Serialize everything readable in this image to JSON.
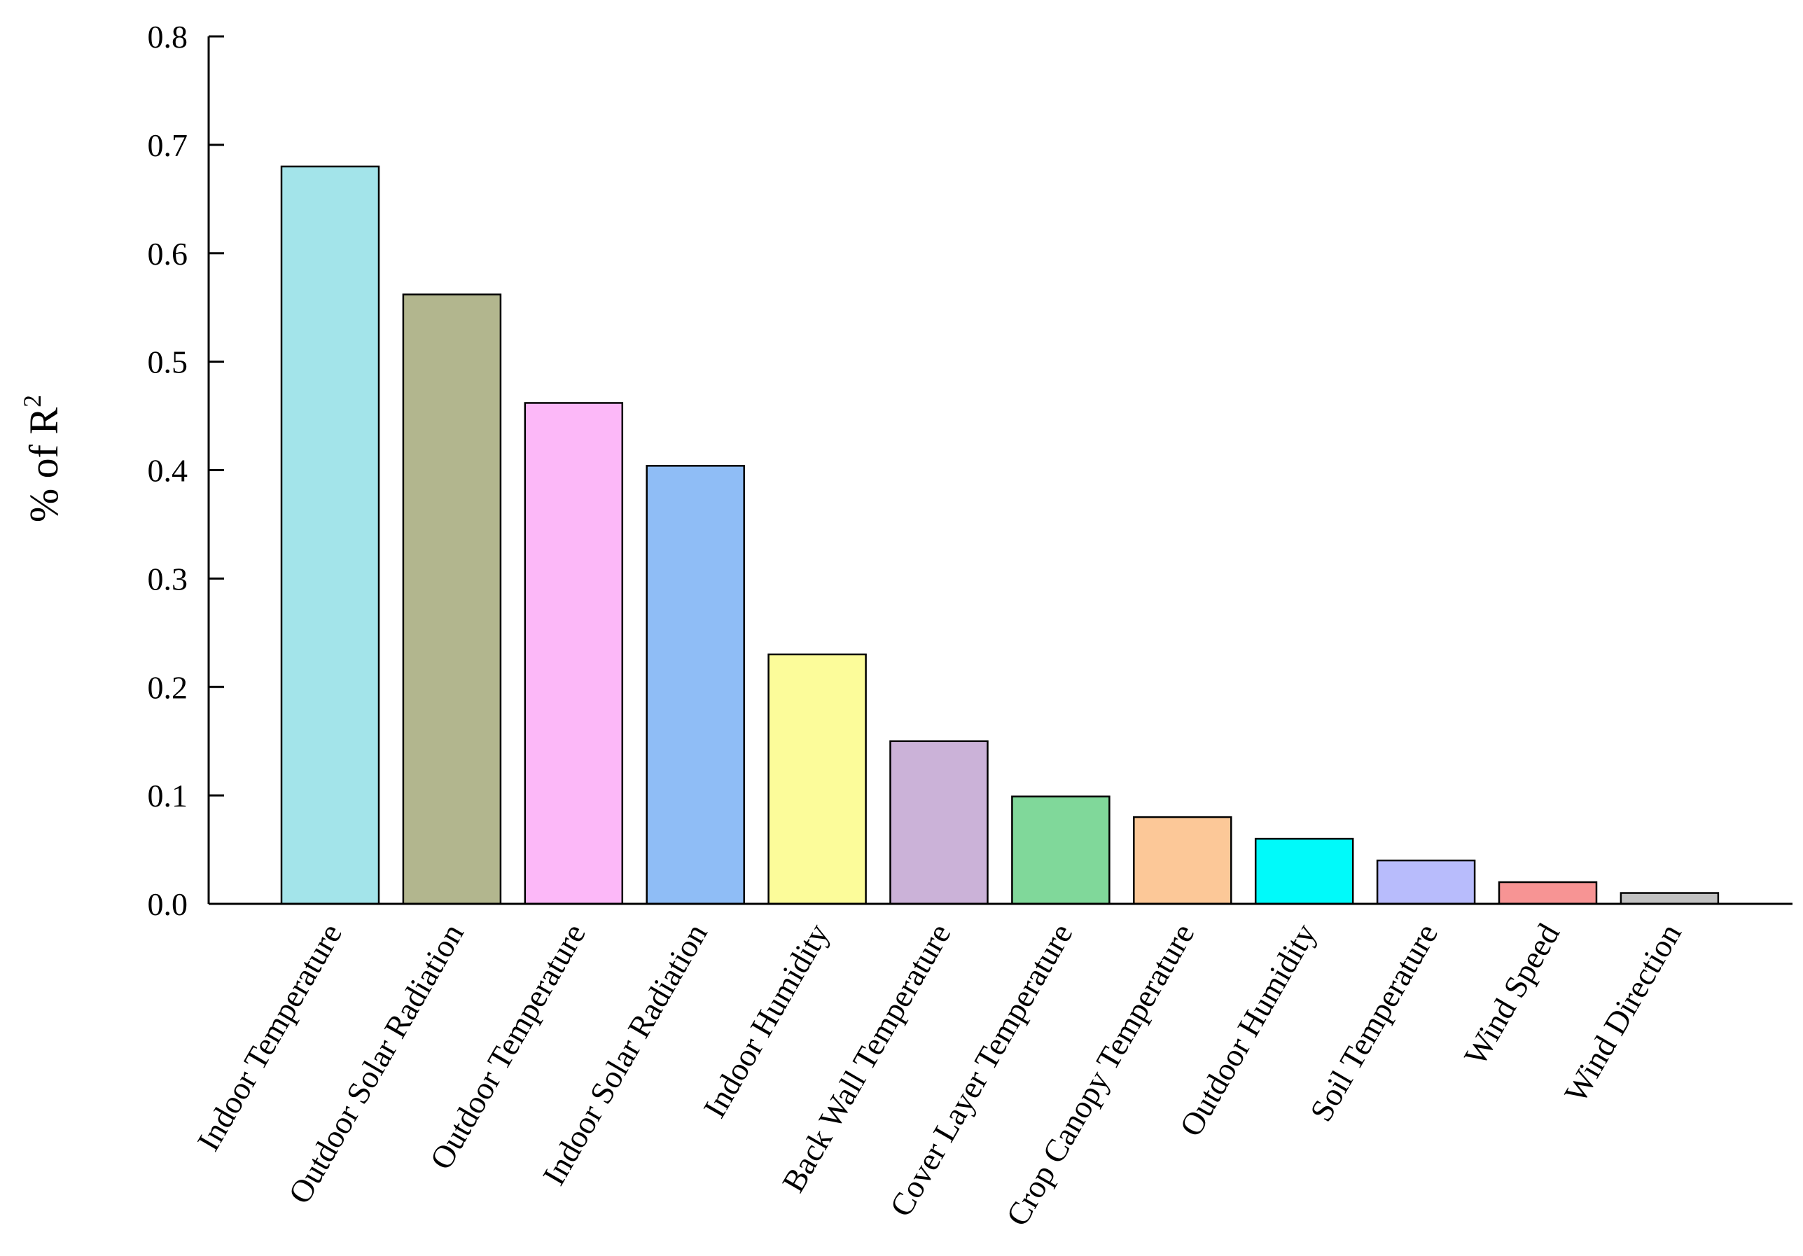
{
  "chart_data": {
    "type": "bar",
    "title": "",
    "xlabel": "",
    "ylabel": "% of R",
    "ylabel_superscript": "2",
    "ylim": [
      0,
      0.8
    ],
    "yticks": [
      "0.0",
      "0.1",
      "0.2",
      "0.3",
      "0.4",
      "0.5",
      "0.6",
      "0.7",
      "0.8"
    ],
    "grid": false,
    "legend": "none",
    "categories": [
      "Indoor Temperature",
      "Outdoor Solar Radiation",
      "Outdoor Temperature",
      "Indoor Solar Radiation",
      "Indoor Humidity",
      "Back Wall Temperature",
      "Cover Layer Temperature",
      "Crop Canopy Temperature",
      "Outdoor Humidity",
      "Soil Temperature",
      "Wind Speed",
      "Wind Direction"
    ],
    "values": [
      0.68,
      0.562,
      0.462,
      0.404,
      0.23,
      0.15,
      0.099,
      0.08,
      0.06,
      0.04,
      0.02,
      0.01
    ],
    "colors": [
      "#a3e4ea",
      "#b2b68e",
      "#fcb8f8",
      "#8fbdf6",
      "#fcfc9a",
      "#cbb2d8",
      "#80d89a",
      "#fcc898",
      "#00fafa",
      "#b8bcfc",
      "#f79494",
      "#c2c2c2"
    ]
  }
}
